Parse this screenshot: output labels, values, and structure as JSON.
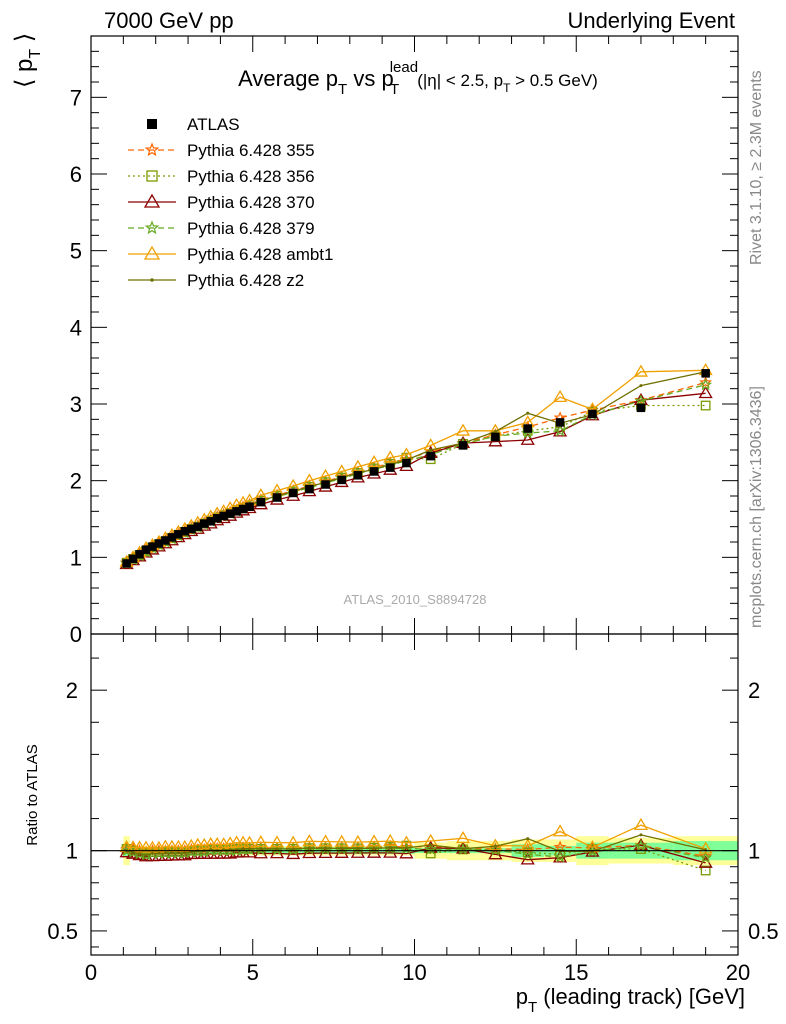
{
  "header": {
    "left": "7000 GeV pp",
    "right": "Underlying Event"
  },
  "side_text": {
    "rivet": "Rivet 3.1.10, ≥ 2.3M events",
    "mcplots": "mcplots.cern.ch [arXiv:1306.3436]"
  },
  "colors": {
    "ATLAS": "#000000",
    "355": "#ff6600",
    "356": "#7a9a00",
    "370": "#8b0000",
    "379": "#66aa22",
    "ambt1": "#f0a000",
    "z2": "#707000",
    "band_inner": "#80ff99",
    "band_outer": "#ffff99"
  },
  "chart_data": [
    {
      "type": "line",
      "title_main": "Average p",
      "title_sub1": "T",
      "title_mid": " vs p",
      "title_sup": "lead",
      "title_sub2": "T",
      "title_cut": "(|η| < 2.5, p",
      "title_cut_sub": "T",
      "title_cut_end": " > 0.5 GeV)",
      "ylabel": "⟨ p",
      "ylabel_sub": "T",
      "ylabel_end": " ⟩",
      "xlim": [
        0,
        20
      ],
      "ylim": [
        0,
        7.8
      ],
      "yticks": [
        0,
        1,
        2,
        3,
        4,
        5,
        6,
        7
      ],
      "watermark": "ATLAS_2010_S8894728",
      "x": [
        1.1,
        1.3,
        1.5,
        1.7,
        1.9,
        2.1,
        2.3,
        2.5,
        2.7,
        2.9,
        3.1,
        3.3,
        3.5,
        3.7,
        3.9,
        4.1,
        4.3,
        4.5,
        4.7,
        4.9,
        5.25,
        5.75,
        6.25,
        6.75,
        7.25,
        7.75,
        8.25,
        8.75,
        9.25,
        9.75,
        10.5,
        11.5,
        12.5,
        13.5,
        14.5,
        15.5,
        17.0,
        19.0
      ],
      "series": [
        {
          "name": "ATLAS",
          "values": [
            0.92,
            0.98,
            1.04,
            1.1,
            1.14,
            1.18,
            1.22,
            1.26,
            1.3,
            1.34,
            1.37,
            1.4,
            1.44,
            1.47,
            1.51,
            1.54,
            1.57,
            1.6,
            1.63,
            1.66,
            1.72,
            1.78,
            1.84,
            1.89,
            1.95,
            2.01,
            2.07,
            2.12,
            2.17,
            2.23,
            2.32,
            2.46,
            2.57,
            2.68,
            2.76,
            2.87,
            2.95,
            3.4
          ]
        },
        {
          "name": "Pythia 6.428 355",
          "values": [
            0.93,
            0.99,
            1.04,
            1.09,
            1.14,
            1.18,
            1.22,
            1.26,
            1.3,
            1.34,
            1.38,
            1.41,
            1.45,
            1.49,
            1.53,
            1.56,
            1.59,
            1.62,
            1.66,
            1.69,
            1.75,
            1.81,
            1.87,
            1.93,
            1.99,
            2.05,
            2.11,
            2.17,
            2.23,
            2.28,
            2.38,
            2.49,
            2.6,
            2.7,
            2.82,
            2.92,
            3.05,
            3.28
          ]
        },
        {
          "name": "Pythia 6.428 356",
          "values": [
            0.93,
            0.98,
            1.03,
            1.08,
            1.13,
            1.17,
            1.21,
            1.25,
            1.29,
            1.33,
            1.37,
            1.4,
            1.44,
            1.48,
            1.52,
            1.55,
            1.58,
            1.62,
            1.65,
            1.68,
            1.74,
            1.8,
            1.86,
            1.92,
            1.98,
            2.04,
            2.1,
            2.16,
            2.22,
            2.3,
            2.28,
            2.48,
            2.58,
            2.65,
            2.7,
            2.9,
            2.98,
            2.98
          ]
        },
        {
          "name": "Pythia 6.428 370",
          "values": [
            0.91,
            0.96,
            1.01,
            1.06,
            1.1,
            1.14,
            1.18,
            1.22,
            1.26,
            1.3,
            1.34,
            1.37,
            1.41,
            1.44,
            1.48,
            1.51,
            1.54,
            1.58,
            1.61,
            1.64,
            1.69,
            1.75,
            1.8,
            1.86,
            1.92,
            1.98,
            2.04,
            2.09,
            2.14,
            2.19,
            2.36,
            2.49,
            2.51,
            2.53,
            2.64,
            2.85,
            3.05,
            3.14
          ]
        },
        {
          "name": "Pythia 6.428 379",
          "values": [
            0.92,
            0.97,
            1.02,
            1.07,
            1.12,
            1.16,
            1.2,
            1.24,
            1.28,
            1.32,
            1.36,
            1.39,
            1.43,
            1.47,
            1.51,
            1.54,
            1.57,
            1.6,
            1.64,
            1.67,
            1.73,
            1.79,
            1.85,
            1.91,
            1.97,
            2.03,
            2.09,
            2.15,
            2.2,
            2.26,
            2.34,
            2.48,
            2.58,
            2.62,
            2.65,
            2.86,
            3.04,
            3.25
          ]
        },
        {
          "name": "Pythia 6.428 ambt1",
          "values": [
            0.94,
            1.0,
            1.06,
            1.12,
            1.16,
            1.2,
            1.25,
            1.29,
            1.33,
            1.37,
            1.41,
            1.45,
            1.49,
            1.53,
            1.57,
            1.6,
            1.64,
            1.68,
            1.71,
            1.74,
            1.81,
            1.87,
            1.93,
            2.0,
            2.06,
            2.12,
            2.18,
            2.24,
            2.3,
            2.34,
            2.46,
            2.65,
            2.65,
            2.76,
            3.09,
            2.93,
            3.42,
            3.44
          ]
        },
        {
          "name": "Pythia 6.428 z2",
          "values": [
            0.92,
            0.97,
            1.02,
            1.07,
            1.12,
            1.16,
            1.2,
            1.24,
            1.28,
            1.32,
            1.36,
            1.4,
            1.44,
            1.48,
            1.51,
            1.55,
            1.58,
            1.61,
            1.65,
            1.68,
            1.74,
            1.8,
            1.86,
            1.92,
            1.98,
            2.04,
            2.1,
            2.15,
            2.21,
            2.27,
            2.4,
            2.49,
            2.64,
            2.88,
            2.75,
            2.86,
            3.24,
            3.42
          ]
        }
      ]
    },
    {
      "type": "line",
      "ylabel": "Ratio to ATLAS",
      "xlabel": "p",
      "xlabel_sub": "T",
      "xlabel_end": " (leading track) [GeV]",
      "xlim": [
        0,
        20
      ],
      "ylim": [
        0.35,
        2.35
      ],
      "yticks_labels": [
        "2",
        "1",
        "0.5"
      ],
      "xticks_labels": [
        "0",
        "5",
        "10",
        "15",
        "20"
      ],
      "band": {
        "x_edges": [
          1.0,
          1.2,
          1.4,
          1.6,
          1.8,
          2.0,
          2.2,
          2.4,
          2.6,
          2.8,
          3.0,
          3.2,
          3.4,
          3.6,
          3.8,
          4.0,
          4.2,
          4.4,
          4.6,
          4.8,
          5.0,
          5.5,
          6.0,
          6.5,
          7.0,
          7.5,
          8.0,
          8.5,
          9.0,
          9.5,
          10.0,
          11.0,
          12.0,
          13.0,
          14.0,
          15.0,
          16.0,
          18.0,
          20.0
        ],
        "inner": [
          0.04,
          0.025,
          0.02,
          0.02,
          0.02,
          0.02,
          0.02,
          0.02,
          0.02,
          0.02,
          0.02,
          0.02,
          0.02,
          0.02,
          0.02,
          0.02,
          0.02,
          0.02,
          0.02,
          0.02,
          0.02,
          0.02,
          0.02,
          0.02,
          0.02,
          0.02,
          0.02,
          0.02,
          0.02,
          0.02,
          0.015,
          0.015,
          0.015,
          0.04,
          0.03,
          0.05,
          0.05,
          0.06
        ],
        "outer": [
          0.09,
          0.035,
          0.03,
          0.03,
          0.03,
          0.03,
          0.03,
          0.03,
          0.03,
          0.03,
          0.03,
          0.03,
          0.03,
          0.03,
          0.03,
          0.03,
          0.03,
          0.03,
          0.03,
          0.03,
          0.03,
          0.03,
          0.03,
          0.03,
          0.03,
          0.03,
          0.03,
          0.03,
          0.03,
          0.03,
          0.05,
          0.06,
          0.06,
          0.07,
          0.07,
          0.09,
          0.08,
          0.09
        ]
      }
    }
  ]
}
